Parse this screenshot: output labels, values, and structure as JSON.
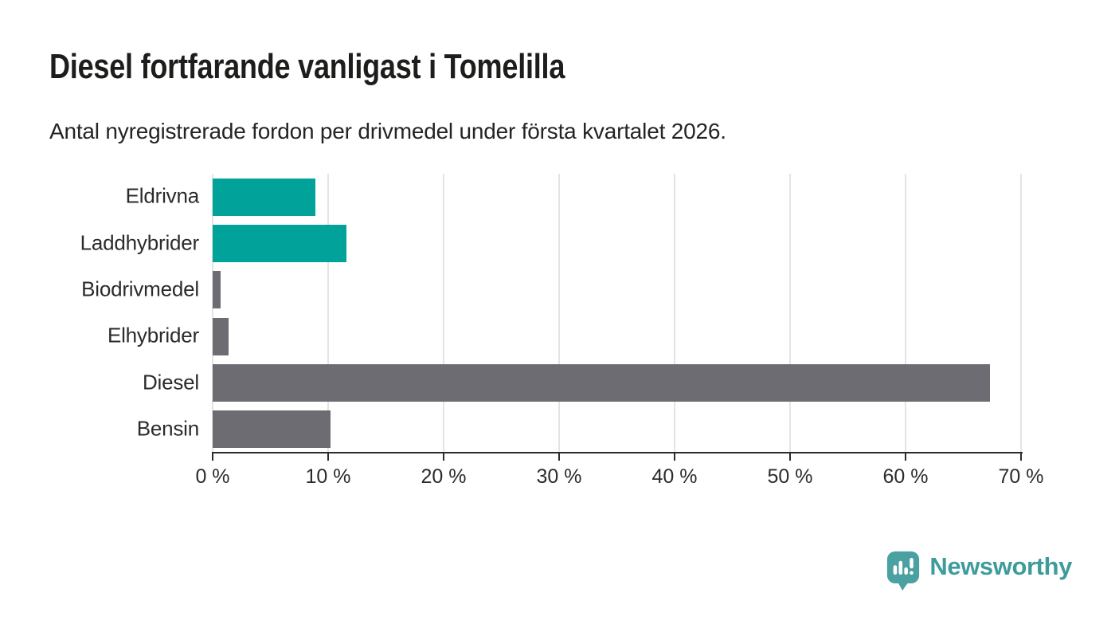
{
  "header": {
    "title": "Diesel fortfarande vanligast i Tomelilla",
    "subtitle": "Antal nyregistrerade fordon per drivmedel under första kvartalet 2026."
  },
  "chart_data": {
    "type": "bar",
    "orientation": "horizontal",
    "title": "Diesel fortfarande vanligast i Tomelilla",
    "subtitle": "Antal nyregistrerade fordon per drivmedel under första kvartalet 2026.",
    "categories": [
      "Eldrivna",
      "Laddhybrider",
      "Biodrivmedel",
      "Elhybrider",
      "Diesel",
      "Bensin"
    ],
    "values": [
      8.9,
      11.6,
      0.7,
      1.4,
      67.3,
      10.2
    ],
    "unit": "%",
    "bar_colors": [
      "#00a29a",
      "#00a29a",
      "#6d6c72",
      "#6d6c72",
      "#6d6c72",
      "#6d6c72"
    ],
    "highlight_color": "#00a29a",
    "default_bar_color": "#6d6c72",
    "xlabel": "",
    "ylabel": "",
    "xlim": [
      0,
      70
    ],
    "x_ticks": [
      0,
      10,
      20,
      30,
      40,
      50,
      60,
      70
    ],
    "x_tick_labels": [
      "0 %",
      "10 %",
      "20 %",
      "30 %",
      "40 %",
      "50 %",
      "60 %",
      "70 %"
    ],
    "grid": "vertical",
    "gridline_color": "#e4e4e4",
    "axis_color": "#2b2b2b",
    "legend": "none"
  },
  "branding": {
    "logo_text": "Newsworthy",
    "logo_icon": "newsworthy-speech-bubble-bar-chart-icon",
    "logo_icon_color": "#4ba0a1",
    "logo_text_color": "#3e9b9c"
  }
}
